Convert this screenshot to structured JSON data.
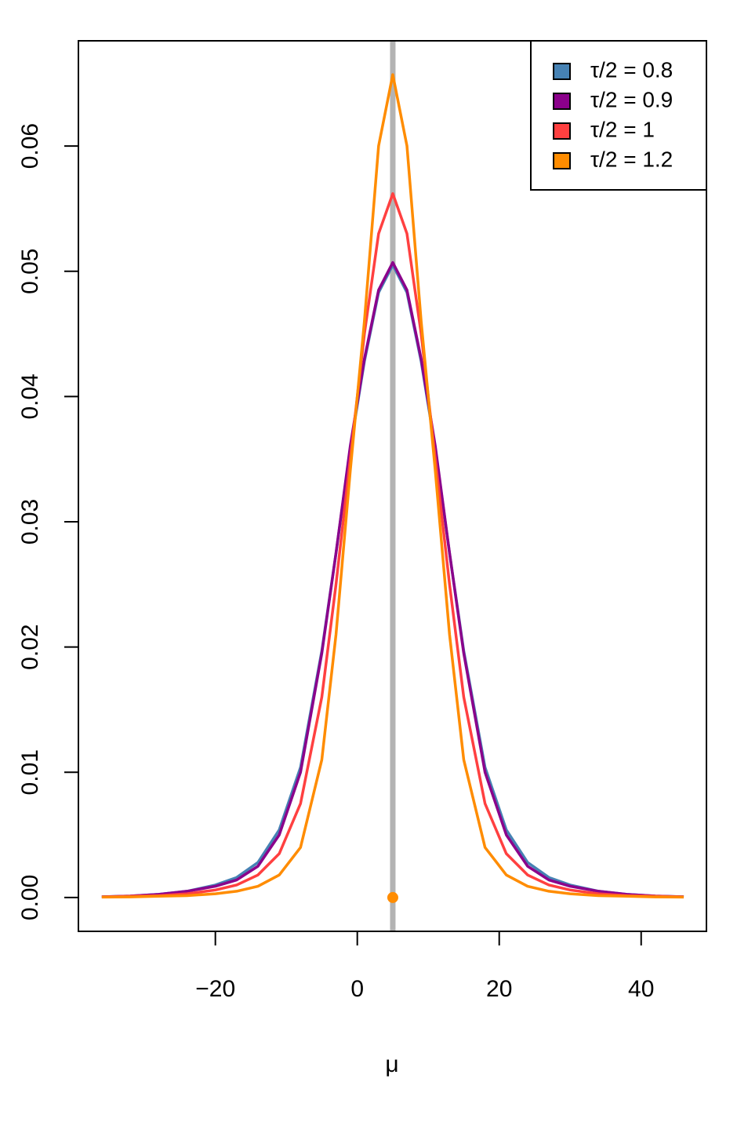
{
  "chart_data": {
    "type": "line",
    "x_label": "μ",
    "x": [
      -36,
      -32,
      -28,
      -24,
      -20,
      -17,
      -14,
      -11,
      -8,
      -5,
      -3,
      -1,
      1,
      3,
      5,
      7,
      9,
      11,
      13,
      15,
      18,
      21,
      24,
      27,
      30,
      34,
      38,
      42,
      46
    ],
    "series": [
      {
        "name": "τ/2 = 0.8",
        "color": "#4682b4",
        "values": [
          6e-05,
          0.00012,
          0.00025,
          0.0005,
          0.001,
          0.0016,
          0.0028,
          0.0054,
          0.0104,
          0.0197,
          0.0275,
          0.0358,
          0.0428,
          0.0483,
          0.0505,
          0.0483,
          0.0428,
          0.0358,
          0.0275,
          0.0197,
          0.0104,
          0.0054,
          0.0028,
          0.0016,
          0.001,
          0.0005,
          0.00025,
          0.00012,
          6e-05
        ]
      },
      {
        "name": "τ/2 = 0.9",
        "color": "#8b008b",
        "values": [
          6e-05,
          0.00012,
          0.00025,
          0.0005,
          0.0009,
          0.0014,
          0.0025,
          0.005,
          0.01,
          0.0195,
          0.0275,
          0.036,
          0.043,
          0.0485,
          0.0507,
          0.0485,
          0.043,
          0.036,
          0.0275,
          0.0195,
          0.01,
          0.005,
          0.0025,
          0.0014,
          0.0009,
          0.0005,
          0.00025,
          0.00012,
          6e-05
        ]
      },
      {
        "name": "τ/2 = 1",
        "color": "#ff4040",
        "values": [
          5e-05,
          0.0001,
          0.00015,
          0.0003,
          0.0006,
          0.001,
          0.0018,
          0.0035,
          0.0075,
          0.016,
          0.025,
          0.035,
          0.045,
          0.053,
          0.0562,
          0.053,
          0.045,
          0.035,
          0.025,
          0.016,
          0.0075,
          0.0035,
          0.0018,
          0.001,
          0.0006,
          0.0003,
          0.00015,
          0.0001,
          5e-05
        ]
      },
      {
        "name": "τ/2 = 1.2",
        "color": "#ff8c00",
        "values": [
          3e-05,
          5e-05,
          0.0001,
          0.00015,
          0.0003,
          0.0005,
          0.0009,
          0.0018,
          0.004,
          0.011,
          0.021,
          0.034,
          0.046,
          0.06,
          0.0657,
          0.06,
          0.046,
          0.034,
          0.021,
          0.011,
          0.004,
          0.0018,
          0.0009,
          0.0005,
          0.0003,
          0.00015,
          0.0001,
          5e-05,
          3e-05
        ]
      }
    ],
    "vline": {
      "x": 5,
      "color": "#b3b3b3"
    },
    "point": {
      "x": 5,
      "y": 0,
      "color": "#ff8c00"
    },
    "xlim": [
      -39.3,
      49.2
    ],
    "ylim": [
      -0.0027,
      0.0684
    ],
    "xticks": [
      {
        "value": -20,
        "label": "−20"
      },
      0,
      20,
      40
    ],
    "yticks": [
      {
        "value": 0,
        "label": "0.00"
      },
      {
        "value": 0.01,
        "label": "0.01"
      },
      {
        "value": 0.02,
        "label": "0.02"
      },
      {
        "value": 0.03,
        "label": "0.03"
      },
      {
        "value": 0.04,
        "label": "0.04"
      },
      {
        "value": 0.05,
        "label": "0.05"
      },
      {
        "value": 0.06,
        "label": "0.06"
      }
    ],
    "legend": "top-right"
  }
}
